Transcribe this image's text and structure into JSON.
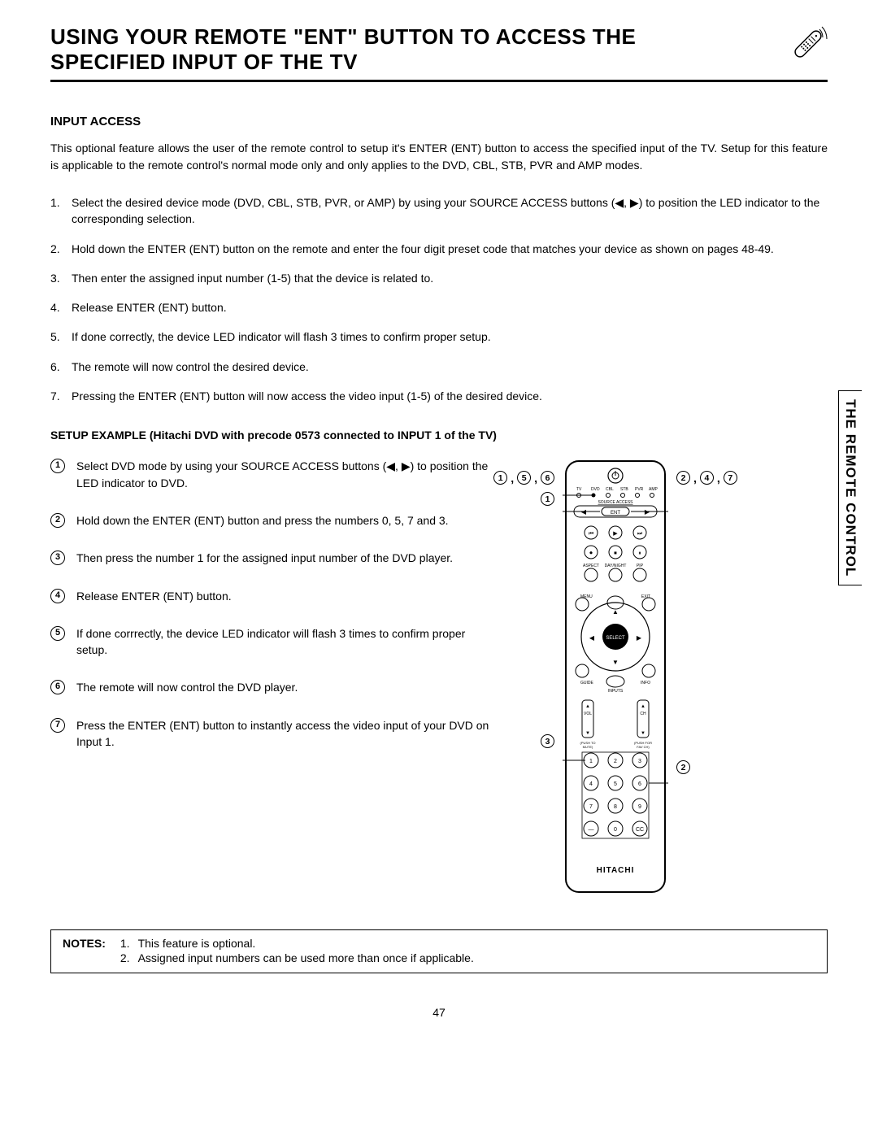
{
  "title": "USING YOUR REMOTE \"ENT\" BUTTON TO ACCESS THE SPECIFIED INPUT OF THE TV",
  "section_heading": "INPUT ACCESS",
  "intro": "This optional feature allows the user of the remote control to setup it's ENTER (ENT) button to access the specified input of the TV. Setup for this feature is applicable to the remote control's normal mode only and only applies to the DVD, CBL, STB, PVR and AMP modes.",
  "steps": [
    "Select the desired device mode (DVD, CBL, STB, PVR, or AMP) by using your SOURCE ACCESS buttons (◀, ▶) to position the LED indicator to the corresponding selection.",
    "Hold down the ENTER (ENT) button on the remote and enter the four digit preset code that matches your device as shown on pages 48-49.",
    "Then enter the assigned input number (1-5) that the device is related to.",
    "Release ENTER (ENT) button.",
    "If done correctly, the device LED indicator will flash 3 times to confirm proper setup.",
    "The remote will now control the desired device.",
    "Pressing the ENTER (ENT) button will now access the video input (1-5) of the desired device."
  ],
  "setup_heading": "SETUP EXAMPLE (Hitachi DVD with precode 0573 connected to INPUT 1 of the TV)",
  "example_steps": [
    "Select DVD mode by using your SOURCE ACCESS buttons (◀, ▶) to position the LED indicator to DVD.",
    "Hold down the ENTER (ENT) button and press the numbers 0, 5, 7 and 3.",
    "Then press the number 1 for the assigned input number of the DVD player.",
    "Release ENTER (ENT) button.",
    "If done corrrectly, the device LED indicator will flash 3 times to confirm proper setup.",
    "The remote will now control the DVD player.",
    "Press the ENTER (ENT) button to instantly access the video input of your DVD on Input 1."
  ],
  "callout_left_top": [
    "1",
    "5",
    "6"
  ],
  "callout_right_top": [
    "2",
    "4",
    "7"
  ],
  "callout_left_mid": "1",
  "callout_left_lower": "3",
  "callout_right_lower": "2",
  "side_tab": "THE REMOTE CONTROL",
  "notes_label": "NOTES:",
  "notes": [
    "This feature is optional.",
    "Assigned input numbers can be used more than once if applicable."
  ],
  "page_number": "47",
  "remote": {
    "brand": "HITACHI",
    "led_labels": [
      "TV",
      "DVD",
      "CBL",
      "STB",
      "PVR",
      "AMP"
    ],
    "source_label": "SOURCE ACCESS",
    "ent_label": "ENT",
    "row_labels": [
      "ASPECT",
      "DAY/NIGHT",
      "PIP"
    ],
    "menu": "MENU",
    "exit": "EXIT",
    "guide": "GUIDE",
    "info": "INFO",
    "select": "SELECT",
    "inputs": "INPUTS",
    "vol": "VOL",
    "ch": "CH",
    "push_mute": "(PUSH TO\nMUTE)",
    "push_fav": "(PUSH FOR\nFAV CH)",
    "numpad": [
      "1",
      "2",
      "3",
      "4",
      "5",
      "6",
      "7",
      "8",
      "9",
      "—",
      "0",
      "CC"
    ],
    "outline_color": "#000000",
    "bg_color": "#ffffff"
  },
  "colors": {
    "text": "#000000",
    "bg": "#ffffff",
    "border": "#000000"
  }
}
